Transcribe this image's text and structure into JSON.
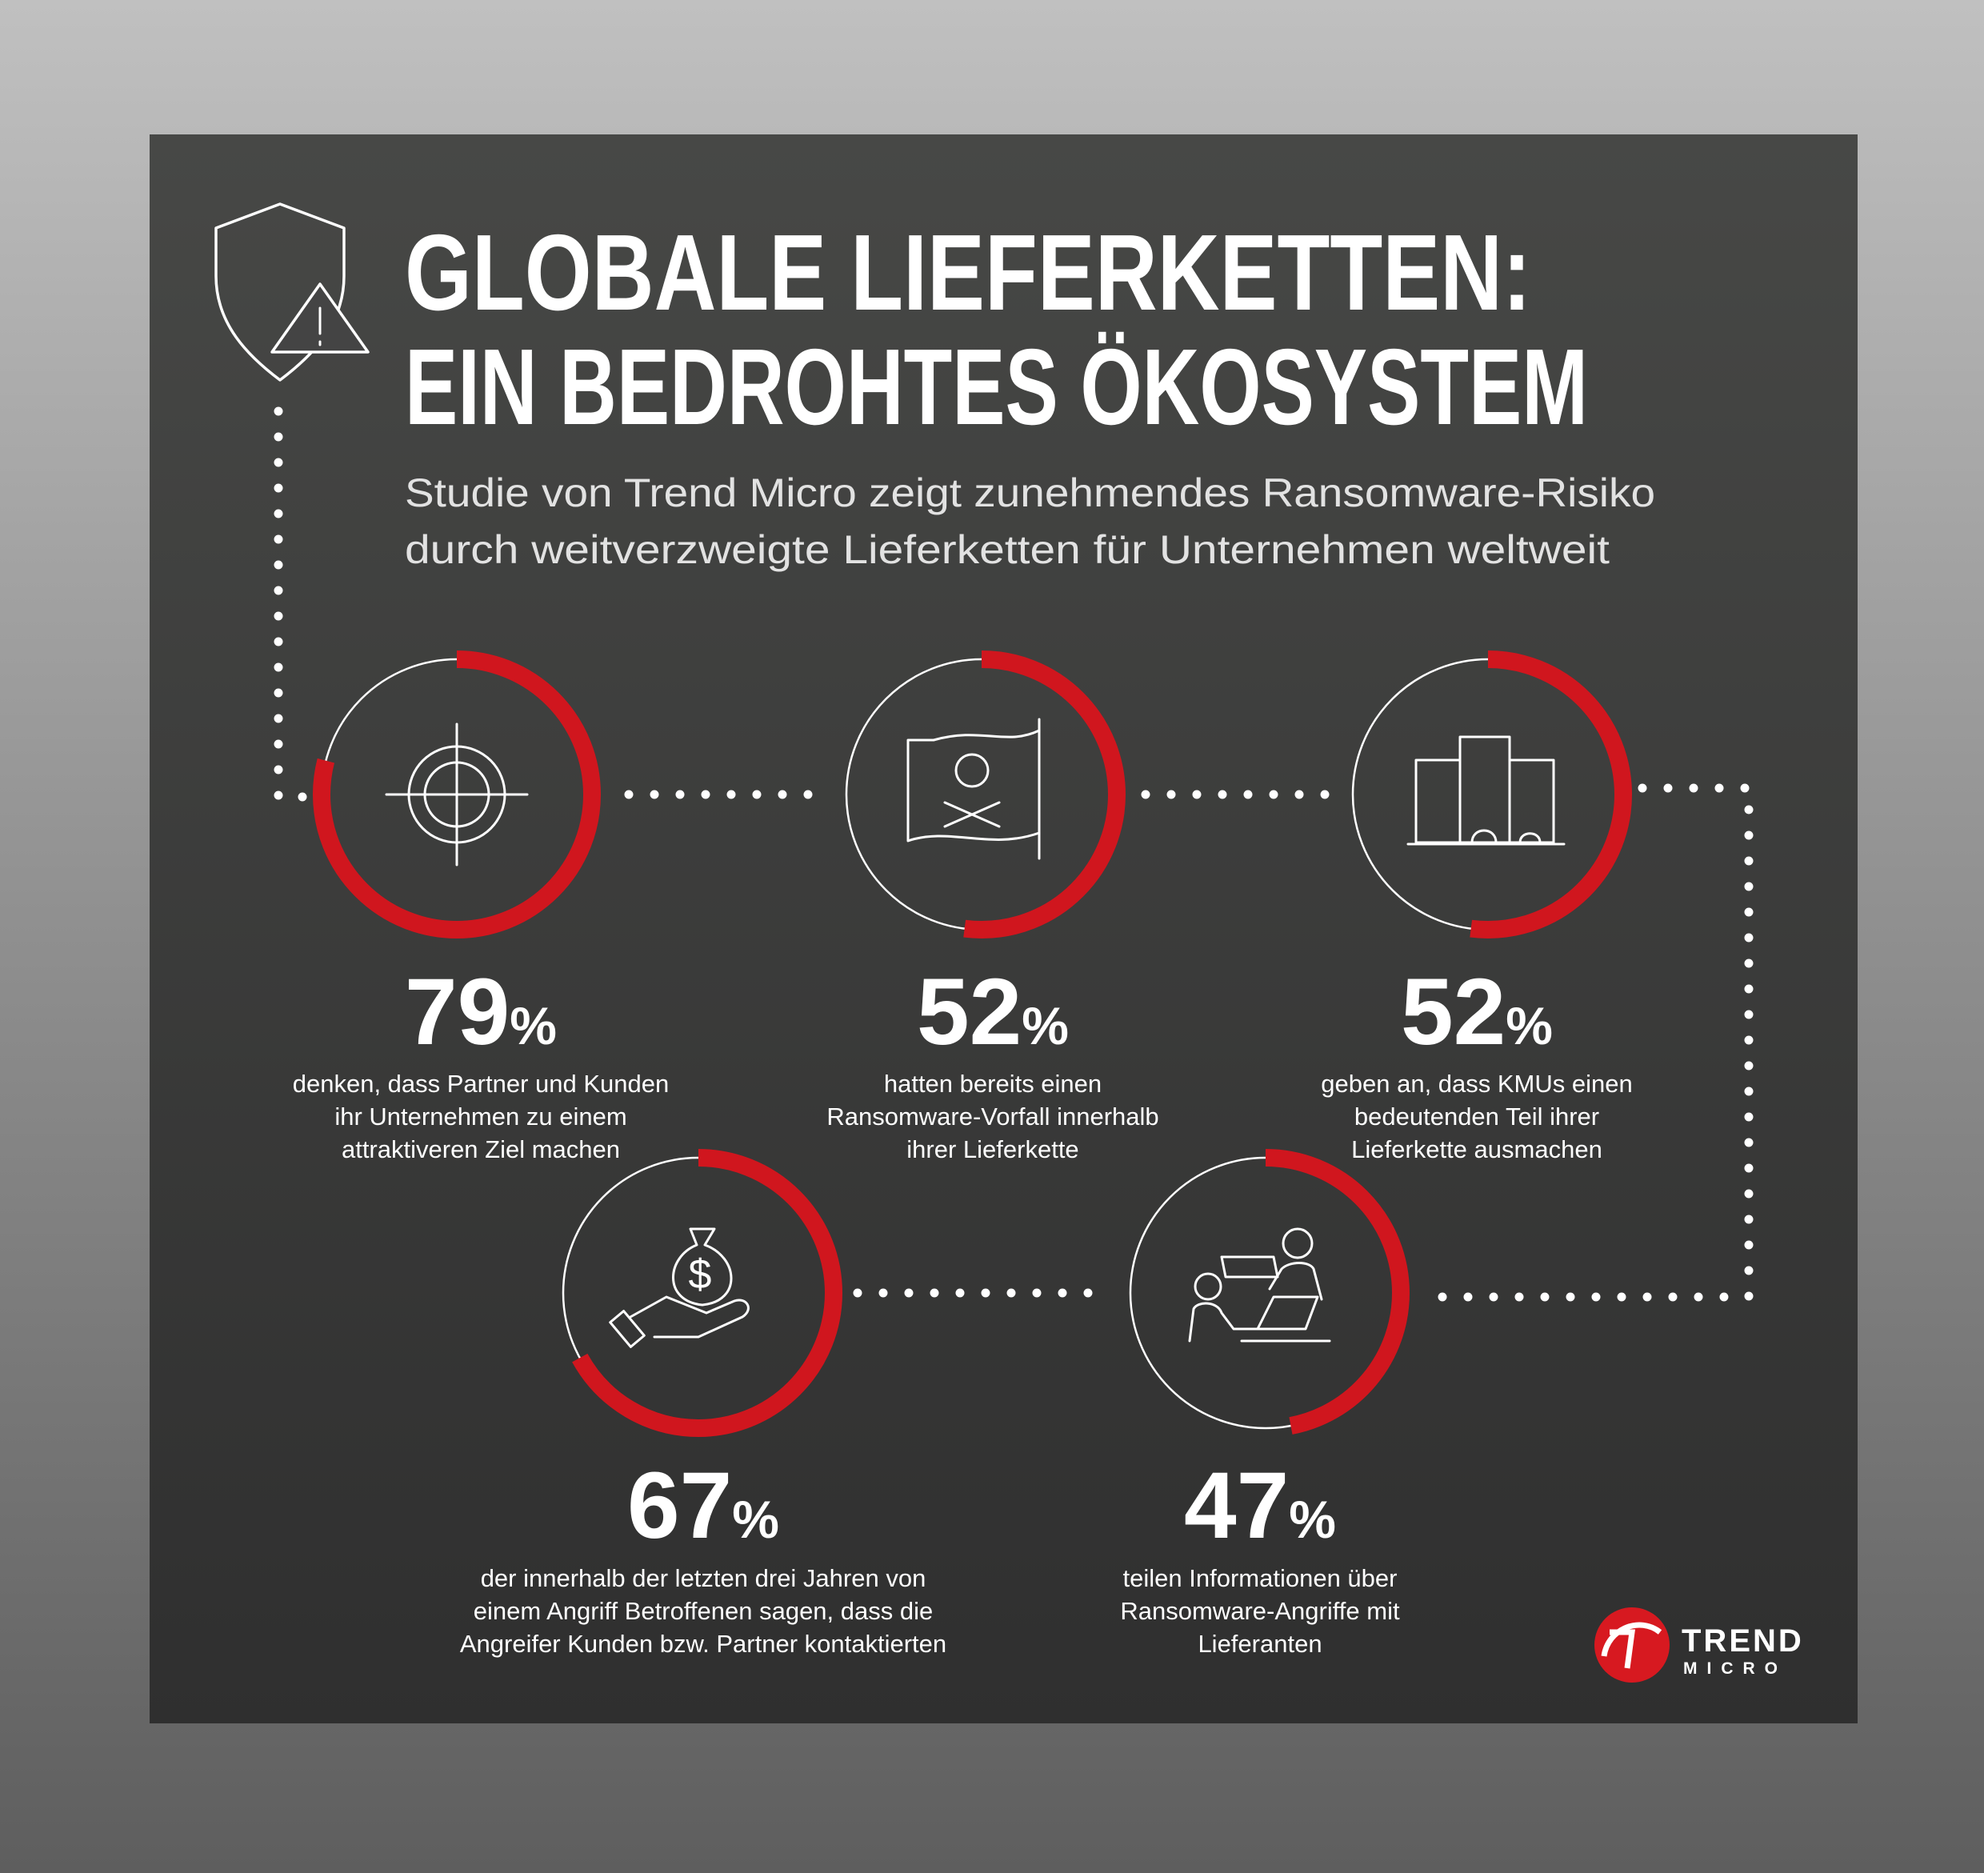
{
  "header": {
    "title_lines": [
      "GLOBALE LIEFERKETTEN:",
      "EIN BEDROHTES ÖKOSYSTEM"
    ],
    "subtitle_lines": [
      "Studie von Trend Micro zeigt zunehmendes Ransomware-Risiko",
      "durch weitverzweigte Lieferketten für Unternehmen weltweit"
    ]
  },
  "stats": [
    {
      "value": 79,
      "unit": "%",
      "description": [
        "denken, dass Partner und Kunden",
        "ihr Unternehmen zu einem",
        "attraktiveren Ziel machen"
      ]
    },
    {
      "value": 52,
      "unit": "%",
      "description": [
        "hatten bereits einen",
        "Ransomware-Vorfall innerhalb",
        "ihrer Lieferkette"
      ]
    },
    {
      "value": 52,
      "unit": "%",
      "description": [
        "geben an, dass KMUs einen",
        "bedeutenden Teil ihrer",
        "Lieferkette ausmachen"
      ]
    },
    {
      "value": 67,
      "unit": "%",
      "description": [
        "der innerhalb der letzten drei Jahren von",
        "einem Angriff Betroffenen sagen, dass die",
        "Angreifer Kunden bzw. Partner kontaktierten"
      ]
    },
    {
      "value": 47,
      "unit": "%",
      "description": [
        "teilen Informationen über",
        "Ransomware-Angriffe mit",
        "Lieferanten"
      ]
    }
  ],
  "logo": {
    "line1": "TREND",
    "line2": "MICRO"
  }
}
